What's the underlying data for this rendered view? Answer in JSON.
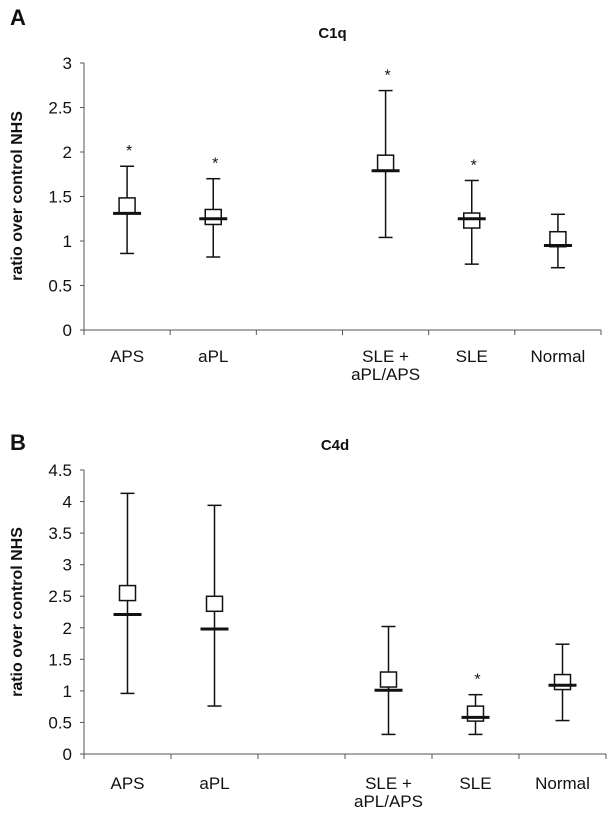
{
  "chart_data": [
    {
      "panel": "A",
      "type": "box",
      "title": "C1q",
      "xlabel": "",
      "ylabel": "ratio over control NHS",
      "ylim": [
        0,
        3
      ],
      "yticks": [
        "0",
        "0.5",
        "1",
        "1.5",
        "2",
        "2.5",
        "3"
      ],
      "ytick_values": [
        0,
        0.5,
        1,
        1.5,
        2,
        2.5,
        3
      ],
      "grid": false,
      "categories": [
        {
          "label": [
            "APS"
          ],
          "max": 1.84,
          "min": 0.86,
          "mean": 1.4,
          "median": 1.31,
          "significant": true,
          "star": "*"
        },
        {
          "label": [
            "aPL"
          ],
          "max": 1.7,
          "min": 0.82,
          "mean": 1.27,
          "median": 1.25,
          "significant": true,
          "star": "*"
        },
        {
          "label": [
            ""
          ],
          "empty": true
        },
        {
          "label": [
            "SLE +",
            "aPL/APS"
          ],
          "max": 2.69,
          "min": 1.04,
          "mean": 1.88,
          "median": 1.79,
          "significant": true,
          "star": "*"
        },
        {
          "label": [
            "SLE"
          ],
          "max": 1.68,
          "min": 0.74,
          "mean": 1.23,
          "median": 1.25,
          "significant": true,
          "star": "*"
        },
        {
          "label": [
            "Normal"
          ],
          "max": 1.3,
          "min": 0.7,
          "mean": 1.02,
          "median": 0.95,
          "significant": false
        }
      ]
    },
    {
      "panel": "B",
      "type": "box",
      "title": "C4d",
      "xlabel": "",
      "ylabel": "ratio over control NHS",
      "ylim": [
        0,
        4.5
      ],
      "yticks": [
        "0",
        "0.5",
        "1",
        "1.5",
        "2",
        "2.5",
        "3",
        "3.5",
        "4",
        "4.5"
      ],
      "ytick_values": [
        0,
        0.5,
        1,
        1.5,
        2,
        2.5,
        3,
        3.5,
        4,
        4.5
      ],
      "grid": false,
      "categories": [
        {
          "label": [
            "APS"
          ],
          "max": 4.13,
          "min": 0.96,
          "mean": 2.55,
          "median": 2.21,
          "significant": false
        },
        {
          "label": [
            "aPL"
          ],
          "max": 3.94,
          "min": 0.76,
          "mean": 2.38,
          "median": 1.98,
          "significant": false
        },
        {
          "label": [
            ""
          ],
          "empty": true
        },
        {
          "label": [
            "SLE +",
            "aPL/APS"
          ],
          "max": 2.02,
          "min": 0.31,
          "mean": 1.18,
          "median": 1.01,
          "significant": false
        },
        {
          "label": [
            "SLE"
          ],
          "max": 0.94,
          "min": 0.31,
          "mean": 0.64,
          "median": 0.58,
          "significant": true,
          "star": "*"
        },
        {
          "label": [
            "Normal"
          ],
          "max": 1.74,
          "min": 0.53,
          "mean": 1.14,
          "median": 1.09,
          "significant": false
        }
      ]
    }
  ]
}
